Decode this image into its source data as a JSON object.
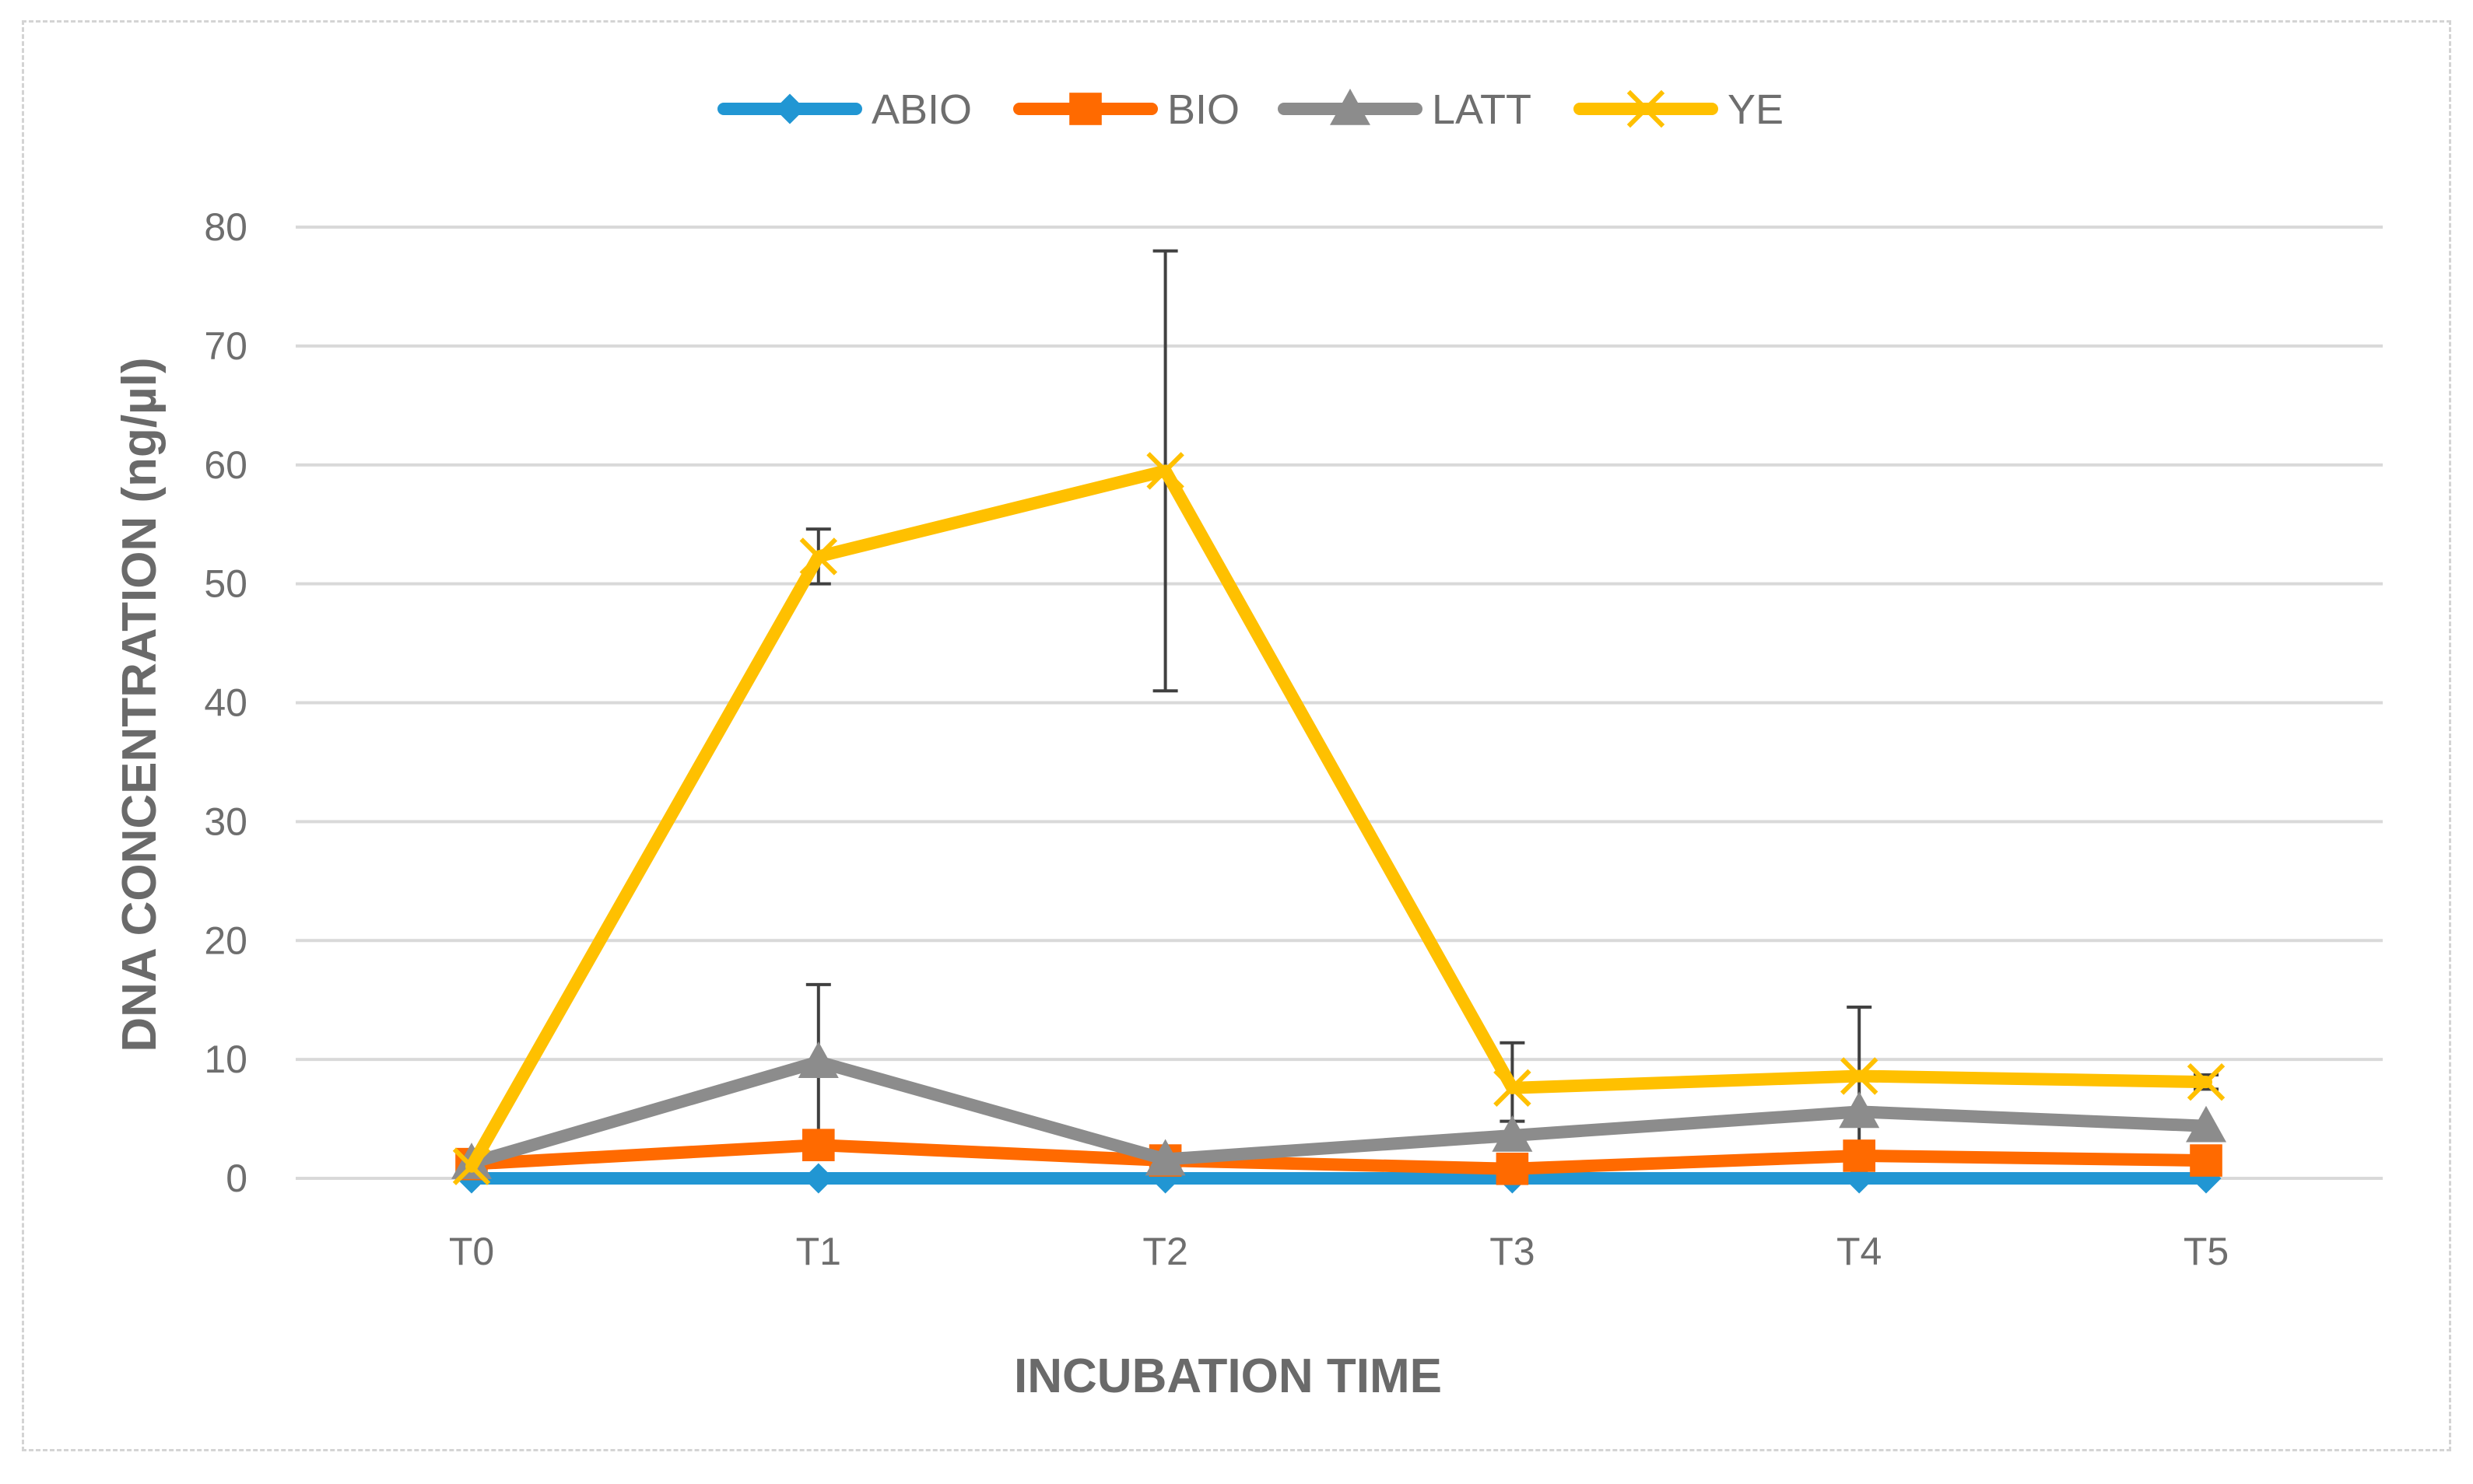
{
  "chart_data": {
    "type": "line",
    "title": "",
    "xlabel": "INCUBATION TIME",
    "ylabel": "DNA CONCENTRATION (ng/µl)",
    "categories": [
      "T0",
      "T1",
      "T2",
      "T3",
      "T4",
      "T5"
    ],
    "ylim": [
      0,
      80
    ],
    "yticks": [
      0,
      10,
      20,
      30,
      40,
      50,
      60,
      70,
      80
    ],
    "grid": "horizontal",
    "legend_position": "top",
    "series": [
      {
        "name": "ABIO",
        "color": "#2196d3",
        "marker": "diamond",
        "values": [
          0,
          0,
          0,
          0,
          0,
          0
        ],
        "error": [
          0,
          0,
          0,
          0,
          0,
          0
        ]
      },
      {
        "name": "BIO",
        "color": "#ff6a00",
        "marker": "square",
        "values": [
          1.2,
          2.8,
          1.5,
          0.8,
          1.9,
          1.5
        ],
        "error": [
          0,
          0,
          0,
          0,
          0,
          0
        ]
      },
      {
        "name": "LATT",
        "color": "#8c8c8c",
        "marker": "triangle",
        "values": [
          1.3,
          9.8,
          1.6,
          3.6,
          5.6,
          4.4
        ],
        "error": [
          0,
          6.5,
          0,
          1.2,
          0,
          0
        ]
      },
      {
        "name": "YE",
        "color": "#ffc000",
        "marker": "x",
        "values": [
          1.0,
          52.3,
          59.5,
          7.6,
          8.6,
          8.1
        ],
        "error": [
          0,
          2.3,
          18.5,
          3.8,
          5.8,
          0.6
        ]
      }
    ]
  }
}
